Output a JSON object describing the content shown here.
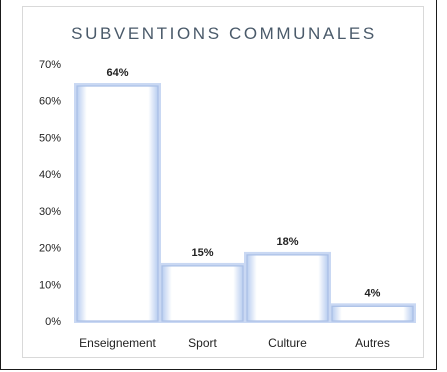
{
  "chart_data": {
    "type": "bar",
    "title": "SUBVENTIONS COMMUNALES",
    "xlabel": "",
    "ylabel": "",
    "categories": [
      "Enseignement",
      "Sport",
      "Culture",
      "Autres"
    ],
    "values": [
      64,
      15,
      18,
      4
    ],
    "data_labels": [
      "64%",
      "15%",
      "18%",
      "4%"
    ],
    "ylim": [
      0,
      70
    ],
    "y_ticks": [
      0,
      10,
      20,
      30,
      40,
      50,
      60,
      70
    ],
    "y_tick_labels": [
      "0%",
      "10%",
      "20%",
      "30%",
      "40%",
      "50%",
      "60%",
      "70%"
    ],
    "grid": false,
    "legend": "none",
    "bar_fill": "#ffffff",
    "bar_edge": "#a9bfe6",
    "bar_glow": "#c9d8f3",
    "axis_color": "#d0d0d0",
    "title_color": "#4a5a6a"
  }
}
